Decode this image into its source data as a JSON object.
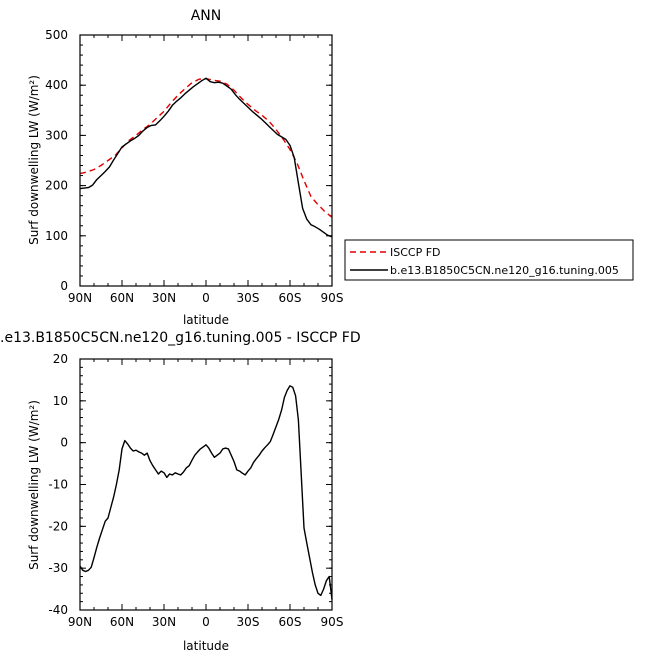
{
  "chart_data": [
    {
      "type": "line",
      "title": "ANN",
      "xlabel": "latitude",
      "ylabel": "Surf downwelling LW (W/m²)",
      "xlim": [
        -90,
        90
      ],
      "ylim": [
        0,
        500
      ],
      "xticks": [
        {
          "v": -90,
          "label": "90N"
        },
        {
          "v": -60,
          "label": "60N"
        },
        {
          "v": -30,
          "label": "30N"
        },
        {
          "v": 0,
          "label": "0"
        },
        {
          "v": 30,
          "label": "30S"
        },
        {
          "v": 60,
          "label": "60S"
        },
        {
          "v": 90,
          "label": "90S"
        }
      ],
      "yticks": [
        0,
        100,
        200,
        300,
        400,
        500
      ],
      "legend_position": "right",
      "series": [
        {
          "name": "ISCCP FD",
          "color": "#e00000",
          "dash": true,
          "x": [
            -90,
            -85,
            -80,
            -75,
            -70,
            -65,
            -60,
            -55,
            -50,
            -45,
            -40,
            -35,
            -30,
            -25,
            -20,
            -15,
            -10,
            -5,
            0,
            5,
            10,
            15,
            20,
            25,
            30,
            35,
            40,
            45,
            50,
            55,
            60,
            65,
            70,
            75,
            80,
            85,
            90
          ],
          "y": [
            224,
            227,
            232,
            240,
            250,
            260,
            275,
            290,
            300,
            312,
            322,
            335,
            348,
            365,
            380,
            393,
            405,
            412,
            413,
            410,
            408,
            402,
            390,
            375,
            362,
            350,
            340,
            328,
            312,
            293,
            272,
            245,
            210,
            178,
            162,
            148,
            137
          ]
        },
        {
          "name": "b.e13.B1850C5CN.ne120_g16.tuning.005",
          "color": "#000000",
          "dash": false,
          "x": [
            -90,
            -87,
            -84,
            -81,
            -78,
            -75,
            -72,
            -69,
            -66,
            -63,
            -60,
            -57,
            -54,
            -51,
            -48,
            -45,
            -42,
            -39,
            -36,
            -33,
            -30,
            -27,
            -24,
            -21,
            -18,
            -15,
            -12,
            -9,
            -6,
            -3,
            0,
            3,
            6,
            9,
            12,
            15,
            18,
            21,
            24,
            27,
            30,
            33,
            36,
            39,
            42,
            45,
            48,
            51,
            54,
            57,
            60,
            63,
            66,
            69,
            72,
            75,
            78,
            81,
            84,
            87,
            90
          ],
          "y": [
            194,
            195,
            196,
            201,
            212,
            220,
            228,
            237,
            251,
            264,
            277,
            283,
            289,
            294,
            300,
            309,
            316,
            320,
            321,
            329,
            338,
            348,
            360,
            368,
            375,
            383,
            390,
            397,
            403,
            409,
            414,
            407,
            405,
            406,
            404,
            398,
            392,
            381,
            372,
            364,
            356,
            348,
            341,
            334,
            326,
            318,
            310,
            302,
            297,
            292,
            280,
            256,
            205,
            155,
            133,
            122,
            118,
            113,
            107,
            101,
            98
          ]
        }
      ]
    },
    {
      "type": "line",
      "title": ".e13.B1850C5CN.ne120_g16.tuning.005 - ISCCP FD",
      "xlabel": "latitude",
      "ylabel": "Surf downwelling LW (W/m²)",
      "xlim": [
        -90,
        90
      ],
      "ylim": [
        -40,
        20
      ],
      "xticks": [
        {
          "v": -90,
          "label": "90N"
        },
        {
          "v": -60,
          "label": "60N"
        },
        {
          "v": -30,
          "label": "30N"
        },
        {
          "v": 0,
          "label": "0"
        },
        {
          "v": 30,
          "label": "30S"
        },
        {
          "v": 60,
          "label": "60S"
        },
        {
          "v": 90,
          "label": "90S"
        }
      ],
      "yticks": [
        -40,
        -30,
        -20,
        -10,
        0,
        10,
        20
      ],
      "series": [
        {
          "color": "#000000",
          "dash": false,
          "x": [
            -90,
            -88,
            -86,
            -84,
            -82,
            -80,
            -78,
            -76,
            -74,
            -72,
            -70,
            -68,
            -66,
            -64,
            -62,
            -60,
            -58,
            -56,
            -54,
            -52,
            -50,
            -48,
            -46,
            -44,
            -42,
            -40,
            -38,
            -36,
            -34,
            -32,
            -30,
            -28,
            -26,
            -24,
            -22,
            -20,
            -18,
            -16,
            -14,
            -12,
            -10,
            -8,
            -6,
            -4,
            -2,
            0,
            2,
            4,
            6,
            8,
            10,
            12,
            14,
            16,
            18,
            20,
            22,
            24,
            26,
            28,
            30,
            32,
            34,
            36,
            38,
            40,
            42,
            44,
            46,
            48,
            50,
            52,
            54,
            56,
            58,
            60,
            62,
            64,
            66,
            68,
            70,
            72,
            74,
            76,
            78,
            80,
            82,
            84,
            86,
            88,
            90
          ],
          "y": [
            -29.5,
            -30.5,
            -30.8,
            -30.5,
            -29.8,
            -27.5,
            -25,
            -22.8,
            -20.8,
            -18.8,
            -18,
            -15.5,
            -13,
            -10,
            -6.5,
            -1.5,
            0.5,
            -0.3,
            -1.3,
            -2,
            -1.8,
            -2.2,
            -2.5,
            -3,
            -2.5,
            -4.3,
            -5.5,
            -6.5,
            -7.5,
            -6.8,
            -7.2,
            -8.3,
            -7.5,
            -7.7,
            -7.2,
            -7.5,
            -7.7,
            -7,
            -6,
            -5.5,
            -4.2,
            -3,
            -2.2,
            -1.5,
            -1,
            -0.5,
            -1.3,
            -2.5,
            -3.5,
            -3,
            -2.5,
            -1.5,
            -1.3,
            -1.5,
            -3,
            -4.5,
            -6.5,
            -6.8,
            -7.3,
            -7.7,
            -6.8,
            -6,
            -4.7,
            -3.8,
            -3,
            -2,
            -1.2,
            -0.5,
            0.3,
            2,
            3.8,
            5.6,
            7.8,
            10.8,
            12.5,
            13.6,
            13.2,
            11.2,
            5.4,
            -7.5,
            -20.4,
            -24,
            -27.5,
            -31,
            -34,
            -36,
            -36.5,
            -35,
            -33,
            -32,
            -37.5
          ]
        }
      ]
    }
  ]
}
